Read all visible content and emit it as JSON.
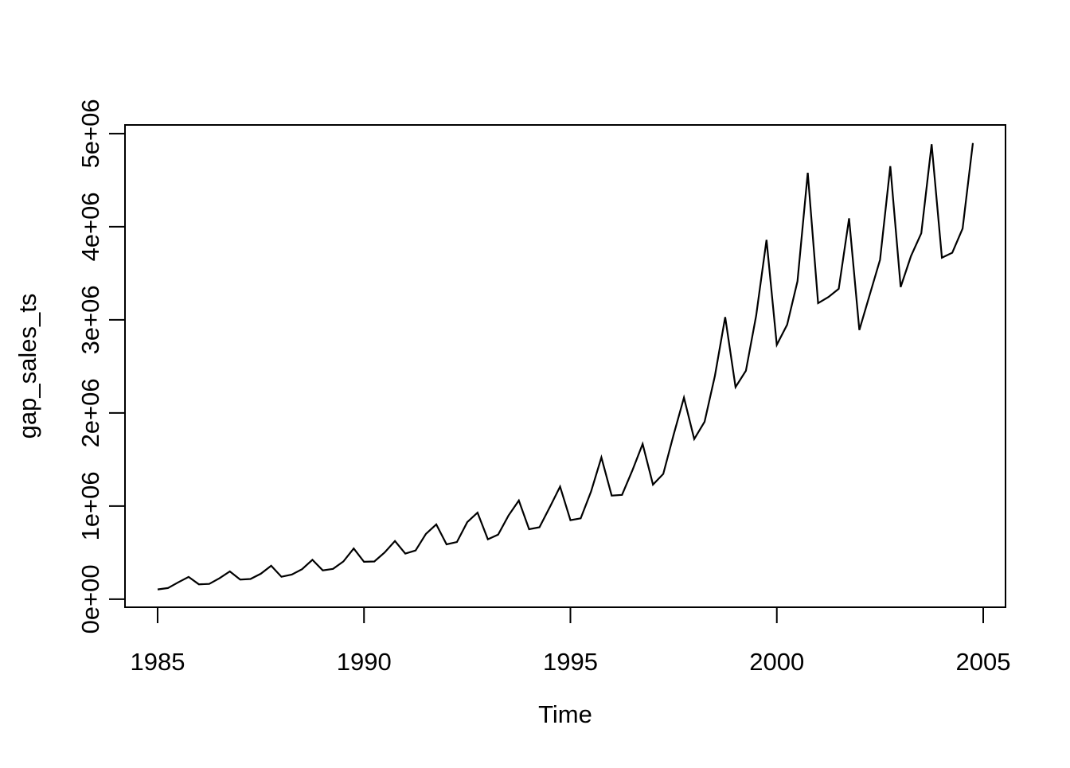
{
  "figure": {
    "background_color": "#ffffff",
    "foreground_color": "#000000"
  },
  "chart_data": {
    "type": "line",
    "title": "",
    "xlabel": "Time",
    "ylabel": "gap_sales_ts",
    "series_name": "gap_sales_ts",
    "frequency": "quarterly",
    "x_start": 1985.0,
    "x_step": 0.25,
    "x_end": 2004.75,
    "values": [
      105715,
      120136,
      181669,
      239813,
      159980,
      164760,
      224800,
      298469,
      211060,
      217753,
      273616,
      359592,
      241348,
      264328,
      322752,
      423669,
      309925,
      325939,
      405601,
      545131,
      402368,
      404996,
      501690,
      624726,
      490300,
      523056,
      702052,
      803485,
      588864,
      614114,
      827222,
      930209,
      643580,
      693192,
      898677,
      1060230,
      751670,
      773131,
      988346,
      1209790,
      848688,
      868514,
      1155930,
      1522120,
      1113150,
      1120340,
      1383000,
      1667900,
      1231186,
      1345221,
      1765939,
      2165479,
      1719712,
      1904970,
      2399900,
      3029900,
      2277734,
      2453339,
      3045386,
      3858939,
      2731990,
      2947714,
      3414668,
      4579088,
      3179656,
      3245219,
      3333373,
      4089625,
      2890840,
      3268309,
      3644956,
      4650604,
      3352771,
      3685299,
      3929456,
      4886264,
      3667565,
      3720789,
      3980150,
      4898000
    ],
    "x_ticks": [
      {
        "value": 1985,
        "label": "1985"
      },
      {
        "value": 1990,
        "label": "1990"
      },
      {
        "value": 1995,
        "label": "1995"
      },
      {
        "value": 2000,
        "label": "2000"
      },
      {
        "value": 2005,
        "label": "2005"
      }
    ],
    "y_ticks": [
      {
        "value": 0,
        "label": "0e+00"
      },
      {
        "value": 1000000,
        "label": "1e+06"
      },
      {
        "value": 2000000,
        "label": "2e+06"
      },
      {
        "value": 3000000,
        "label": "3e+06"
      },
      {
        "value": 4000000,
        "label": "4e+06"
      },
      {
        "value": 5000000,
        "label": "5e+06"
      }
    ],
    "xlim": [
      1984.21,
      2005.54
    ],
    "ylim": [
      -86000,
      5093000
    ],
    "grid": false,
    "legend": "none",
    "line_color": "#000000"
  }
}
